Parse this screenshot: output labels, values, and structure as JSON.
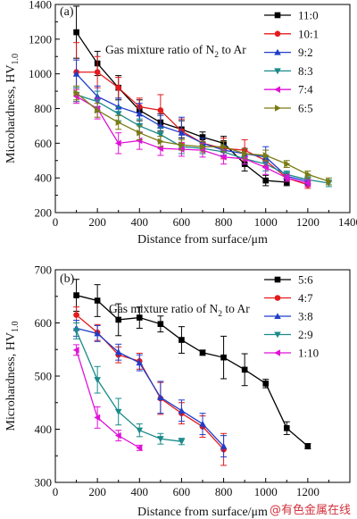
{
  "chart_data": [
    {
      "type": "line",
      "panel_label": "(a)",
      "annotation": "Gas mixture ratio of N",
      "annotation_sub": "2",
      "annotation_tail": " to Ar",
      "xlabel": "Distance from surface/μm",
      "ylabel": "Microhardness, HV",
      "ylabel_sub": "1.0",
      "xlim": [
        0,
        1400
      ],
      "ylim": [
        200,
        1400
      ],
      "xticks": [
        0,
        200,
        400,
        600,
        800,
        1000,
        1200,
        1400
      ],
      "yticks": [
        200,
        400,
        600,
        800,
        1000,
        1200,
        1400
      ],
      "legend_position": "top-right",
      "series": [
        {
          "name": "11:0",
          "color": "#000000",
          "marker": "square",
          "x": [
            100,
            200,
            300,
            400,
            500,
            600,
            700,
            800,
            900,
            1000,
            1100
          ],
          "y": [
            1240,
            1060,
            920,
            790,
            720,
            680,
            635,
            600,
            480,
            385,
            375
          ],
          "err": [
            150,
            70,
            70,
            60,
            50,
            50,
            30,
            40,
            40,
            30,
            20
          ]
        },
        {
          "name": "10:1",
          "color": "#e41a1c",
          "marker": "circle",
          "x": [
            100,
            200,
            300,
            400,
            500,
            600,
            700,
            800,
            900,
            1000,
            1100,
            1200
          ],
          "y": [
            1010,
            1010,
            920,
            810,
            790,
            670,
            600,
            570,
            560,
            500,
            400,
            360
          ],
          "err": [
            170,
            90,
            60,
            50,
            90,
            70,
            30,
            60,
            60,
            30,
            20,
            20
          ]
        },
        {
          "name": "9:2",
          "color": "#1f3ec9",
          "marker": "triangle-up",
          "x": [
            100,
            200,
            300,
            400,
            500,
            600,
            700,
            800,
            900,
            1000,
            1100,
            1200
          ],
          "y": [
            1000,
            870,
            810,
            770,
            700,
            660,
            600,
            560,
            540,
            520,
            410,
            380
          ],
          "err": [
            80,
            60,
            50,
            60,
            60,
            90,
            30,
            30,
            30,
            60,
            20,
            20
          ]
        },
        {
          "name": "8:3",
          "color": "#1a8a8a",
          "marker": "triangle-down",
          "x": [
            100,
            200,
            300,
            400,
            500,
            600,
            700,
            800,
            900,
            1000,
            1100,
            1200,
            1300
          ],
          "y": [
            880,
            840,
            770,
            700,
            650,
            580,
            570,
            550,
            510,
            480,
            420,
            390,
            370
          ],
          "err": [
            40,
            60,
            40,
            40,
            40,
            40,
            30,
            30,
            30,
            40,
            20,
            20,
            20
          ]
        },
        {
          "name": "7:4",
          "color": "#e011d8",
          "marker": "triangle-left",
          "x": [
            100,
            200,
            300,
            400,
            500,
            600,
            700,
            800,
            900,
            1000,
            1100,
            1200
          ],
          "y": [
            870,
            800,
            600,
            615,
            570,
            565,
            560,
            520,
            510,
            460,
            400,
            370
          ],
          "err": [
            40,
            60,
            60,
            50,
            40,
            40,
            40,
            40,
            30,
            40,
            20,
            20
          ]
        },
        {
          "name": "6:5",
          "color": "#7a7a14",
          "marker": "triangle-right",
          "x": [
            100,
            200,
            300,
            400,
            500,
            600,
            700,
            800,
            900,
            1000,
            1100,
            1200,
            1300
          ],
          "y": [
            890,
            790,
            720,
            660,
            610,
            590,
            580,
            580,
            540,
            530,
            480,
            420,
            380
          ],
          "err": [
            40,
            40,
            40,
            40,
            30,
            30,
            30,
            30,
            30,
            30,
            20,
            20,
            20
          ]
        }
      ]
    },
    {
      "type": "line",
      "panel_label": "(b)",
      "annotation": "Gas mixture ratio of N",
      "annotation_sub": "2",
      "annotation_tail": " to Ar",
      "xlabel": "Distance from surface/μm",
      "ylabel": "Microhardness, HV",
      "ylabel_sub": "1.0",
      "xlim": [
        0,
        1400
      ],
      "ylim": [
        300,
        700
      ],
      "xticks": [
        0,
        200,
        400,
        600,
        800,
        1000,
        1200
      ],
      "yticks": [
        300,
        400,
        500,
        600,
        700
      ],
      "legend_position": "top-right",
      "series": [
        {
          "name": "5:6",
          "color": "#000000",
          "marker": "square",
          "x": [
            100,
            200,
            300,
            400,
            500,
            600,
            700,
            800,
            900,
            1000,
            1100,
            1200
          ],
          "y": [
            652,
            642,
            606,
            610,
            598,
            568,
            544,
            535,
            512,
            486,
            402,
            368
          ],
          "err": [
            30,
            30,
            30,
            20,
            15,
            25,
            5,
            40,
            30,
            8,
            12,
            5
          ]
        },
        {
          "name": "4:7",
          "color": "#e41a1c",
          "marker": "circle",
          "x": [
            100,
            200,
            300,
            400,
            500,
            600,
            700,
            800
          ],
          "y": [
            615,
            582,
            540,
            528,
            458,
            430,
            405,
            362
          ],
          "err": [
            15,
            15,
            15,
            15,
            30,
            20,
            20,
            30
          ]
        },
        {
          "name": "3:8",
          "color": "#1f3ec9",
          "marker": "triangle-up",
          "x": [
            100,
            200,
            300,
            400,
            500,
            600,
            700,
            800
          ],
          "y": [
            590,
            580,
            545,
            525,
            460,
            435,
            410,
            368
          ],
          "err": [
            15,
            15,
            15,
            15,
            30,
            20,
            20,
            20
          ]
        },
        {
          "name": "2:9",
          "color": "#1a8a8a",
          "marker": "triangle-down",
          "x": [
            100,
            200,
            300,
            400,
            500,
            600
          ],
          "y": [
            585,
            493,
            433,
            398,
            382,
            377
          ],
          "err": [
            15,
            25,
            25,
            12,
            10,
            6
          ]
        },
        {
          "name": "1:10",
          "color": "#e011d8",
          "marker": "triangle-left",
          "x": [
            100,
            200,
            300,
            400
          ],
          "y": [
            549,
            422,
            388,
            365
          ],
          "err": [
            10,
            20,
            10,
            5
          ]
        }
      ]
    }
  ],
  "watermark": "@有色金属在线"
}
